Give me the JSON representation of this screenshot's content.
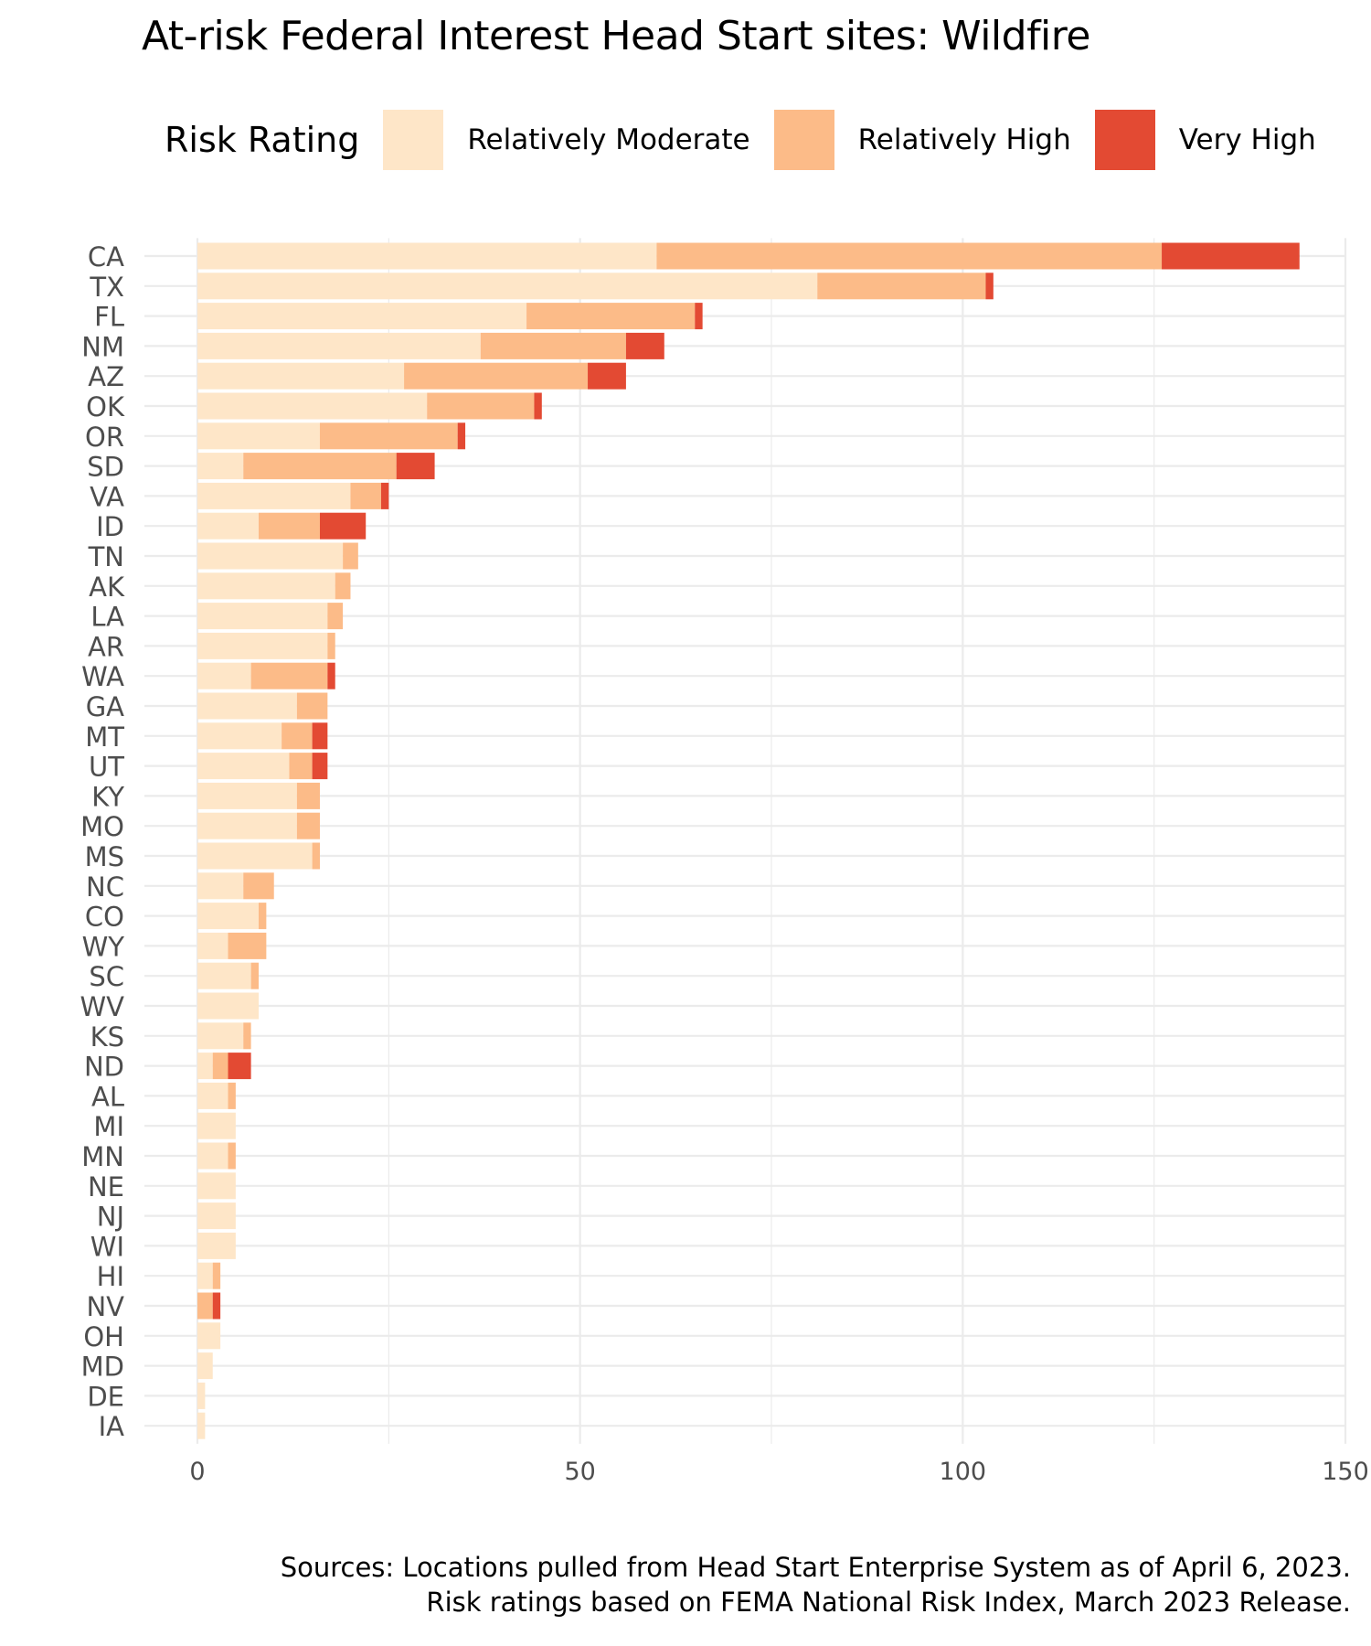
{
  "chart_data": {
    "type": "bar",
    "orientation": "horizontal",
    "stacked": true,
    "title": "At-risk Federal Interest Head Start sites: Wildfire",
    "xlabel": "",
    "ylabel": "",
    "xlim": [
      0,
      150
    ],
    "xticks": [
      0,
      50,
      100,
      150
    ],
    "grid": true,
    "legend": {
      "title": "Risk Rating",
      "position": "top"
    },
    "categories": [
      "CA",
      "TX",
      "FL",
      "NM",
      "AZ",
      "OK",
      "OR",
      "SD",
      "VA",
      "ID",
      "TN",
      "AK",
      "LA",
      "AR",
      "WA",
      "GA",
      "MT",
      "UT",
      "KY",
      "MO",
      "MS",
      "NC",
      "CO",
      "WY",
      "SC",
      "WV",
      "KS",
      "ND",
      "AL",
      "MI",
      "MN",
      "NE",
      "NJ",
      "WI",
      "HI",
      "NV",
      "OH",
      "MD",
      "DE",
      "IA"
    ],
    "series": [
      {
        "name": "Relatively Moderate",
        "color": "#fee6c8",
        "values": [
          60,
          81,
          43,
          37,
          27,
          30,
          16,
          6,
          20,
          8,
          19,
          18,
          17,
          17,
          7,
          13,
          11,
          12,
          13,
          13,
          15,
          6,
          8,
          4,
          7,
          8,
          6,
          2,
          4,
          5,
          4,
          5,
          5,
          5,
          2,
          0,
          3,
          2,
          1,
          1
        ]
      },
      {
        "name": "Relatively High",
        "color": "#fcbb88",
        "values": [
          66,
          22,
          22,
          19,
          24,
          14,
          18,
          20,
          4,
          8,
          2,
          2,
          2,
          1,
          10,
          4,
          4,
          3,
          3,
          3,
          1,
          4,
          1,
          5,
          1,
          0,
          1,
          2,
          1,
          0,
          1,
          0,
          0,
          0,
          1,
          2,
          0,
          0,
          0,
          0
        ]
      },
      {
        "name": "Very High",
        "color": "#e34a33",
        "values": [
          18,
          1,
          1,
          5,
          5,
          1,
          1,
          5,
          1,
          6,
          0,
          0,
          0,
          0,
          1,
          0,
          2,
          2,
          0,
          0,
          0,
          0,
          0,
          0,
          0,
          0,
          0,
          3,
          0,
          0,
          0,
          0,
          0,
          0,
          0,
          1,
          0,
          0,
          0,
          0
        ]
      }
    ]
  },
  "caption": {
    "line1": "Sources: Locations pulled from Head Start Enterprise System as of April 6, 2023.",
    "line2": "Risk ratings based on FEMA National Risk Index, March 2023 Release."
  }
}
